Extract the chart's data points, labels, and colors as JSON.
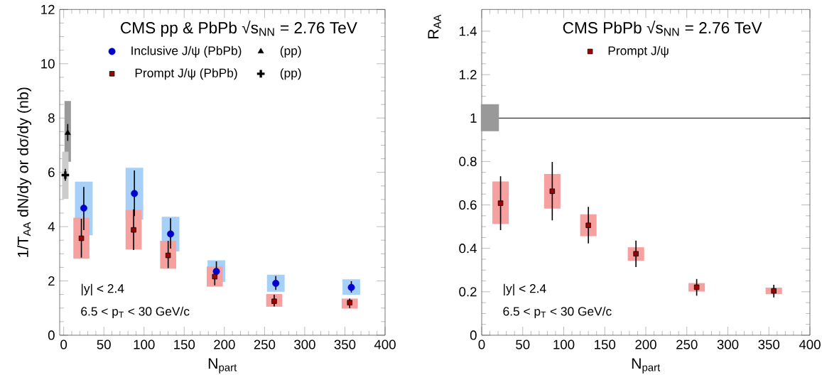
{
  "chart_data": [
    {
      "type": "scatter",
      "title": "CMS pp & PbPb √s$_{NN}$ = 2.76 TeV",
      "xlabel": "N$_{part}$",
      "ylabel": "1/T$_{AA}$ dN/dy  or  dσ/dy (nb)",
      "xlim": [
        -5,
        400
      ],
      "ylim": [
        0,
        12
      ],
      "xticks": [
        0,
        50,
        100,
        150,
        200,
        250,
        300,
        350,
        400
      ],
      "yticks": [
        0,
        2,
        4,
        6,
        8,
        10,
        12
      ],
      "legend": "top",
      "annotations": [
        "|y| < 2.4",
        "6.5 < p$_{T}$ < 30 GeV/c"
      ],
      "series": [
        {
          "type": "bar",
          "color": "#a6d0f8",
          "x": [
            25,
            88,
            133,
            190,
            264,
            358
          ],
          "base": [
            3.68,
            4.26,
            3.09,
            1.96,
            1.6,
            1.49
          ],
          "values": [
            1.98,
            1.91,
            1.27,
            0.8,
            0.63,
            0.57
          ]
        },
        {
          "type": "bar",
          "color": "#f7a0a0",
          "x": [
            22,
            87,
            130,
            188,
            262,
            356
          ],
          "base": [
            2.82,
            3.16,
            2.45,
            1.79,
            1.05,
            0.98
          ],
          "values": [
            1.51,
            1.45,
            1.03,
            0.74,
            0.47,
            0.37
          ]
        },
        {
          "type": "bar",
          "color": "#999999",
          "x": [
            5
          ],
          "base": [
            6.39
          ],
          "values": [
            2.24
          ]
        },
        {
          "type": "bar",
          "color": "#cccccc",
          "x": [
            2
          ],
          "base": [
            5.02
          ],
          "values": [
            1.74
          ]
        },
        {
          "type": "scatter",
          "name": "Inclusive J/ψ (PbPb)",
          "color": "#0000cc",
          "marker": "circle",
          "x": [
            25,
            88,
            133,
            190,
            264,
            358
          ],
          "values": [
            4.68,
            5.22,
            3.73,
            2.35,
            1.91,
            1.76
          ],
          "errors": [
            [
              3.87,
              5.46
            ],
            [
              4.39,
              6.07
            ],
            [
              3.19,
              4.31
            ],
            [
              2.06,
              2.72
            ],
            [
              1.67,
              2.18
            ],
            [
              1.57,
              1.99
            ]
          ]
        },
        {
          "type": "scatter",
          "name": "(pp)",
          "color": "#000000",
          "marker": "triangle",
          "x": [
            5
          ],
          "values": [
            7.45
          ],
          "errors": [
            [
              7.16,
              7.78
            ]
          ]
        },
        {
          "type": "scatter",
          "name": "Prompt J/ψ (PbPb)",
          "color": "#a00000",
          "marker": "square",
          "x": [
            22,
            87,
            130,
            188,
            262,
            356
          ],
          "values": [
            3.57,
            3.88,
            2.94,
            2.16,
            1.25,
            1.2
          ],
          "errors": [
            [
              2.86,
              4.29
            ],
            [
              3.14,
              4.64
            ],
            [
              2.47,
              3.48
            ],
            [
              1.84,
              2.45
            ],
            [
              1.06,
              1.49
            ],
            [
              1.0,
              1.35
            ]
          ]
        },
        {
          "type": "scatter",
          "name": "(pp)",
          "color": "#000000",
          "marker": "cross",
          "x": [
            2
          ],
          "values": [
            5.9
          ],
          "errors": [
            [
              5.69,
              6.13
            ]
          ]
        }
      ]
    },
    {
      "type": "scatter",
      "title": "CMS PbPb √s$_{NN}$ = 2.76 TeV",
      "xlabel": "N$_{part}$",
      "ylabel": "R$_{AA}$",
      "xlim": [
        0,
        400
      ],
      "ylim": [
        0,
        1.5
      ],
      "xticks": [
        0,
        50,
        100,
        150,
        200,
        250,
        300,
        350,
        400
      ],
      "yticks": [
        0,
        0.2,
        0.4,
        0.6,
        0.8,
        1,
        1.2,
        1.4
      ],
      "legend": "top",
      "annotations": [
        "|y| < 2.4",
        "6.5 < p$_{T}$ < 30 GeV/c"
      ],
      "ref_lines": [
        {
          "axis": "y",
          "value": 1,
          "color": "#000000"
        }
      ],
      "series": [
        {
          "type": "bar",
          "color": "#999999",
          "x": [
            10
          ],
          "base": [
            0.939
          ],
          "values": [
            0.125
          ]
        },
        {
          "type": "bar",
          "color": "#f7a0a0",
          "x": [
            23,
            86,
            130,
            188,
            262,
            356
          ],
          "base": [
            0.513,
            0.583,
            0.456,
            0.343,
            0.201,
            0.189
          ],
          "values": [
            0.195,
            0.159,
            0.101,
            0.062,
            0.039,
            0.03
          ]
        },
        {
          "type": "scatter",
          "name": "Prompt J/ψ",
          "color": "#a00000",
          "marker": "square",
          "x": [
            23,
            86,
            130,
            188,
            262,
            356
          ],
          "values": [
            0.608,
            0.663,
            0.506,
            0.375,
            0.221,
            0.204
          ],
          "errors": [
            [
              0.484,
              0.732
            ],
            [
              0.529,
              0.798
            ],
            [
              0.423,
              0.591
            ],
            [
              0.314,
              0.436
            ],
            [
              0.182,
              0.259
            ],
            [
              0.174,
              0.232
            ]
          ]
        }
      ]
    }
  ]
}
